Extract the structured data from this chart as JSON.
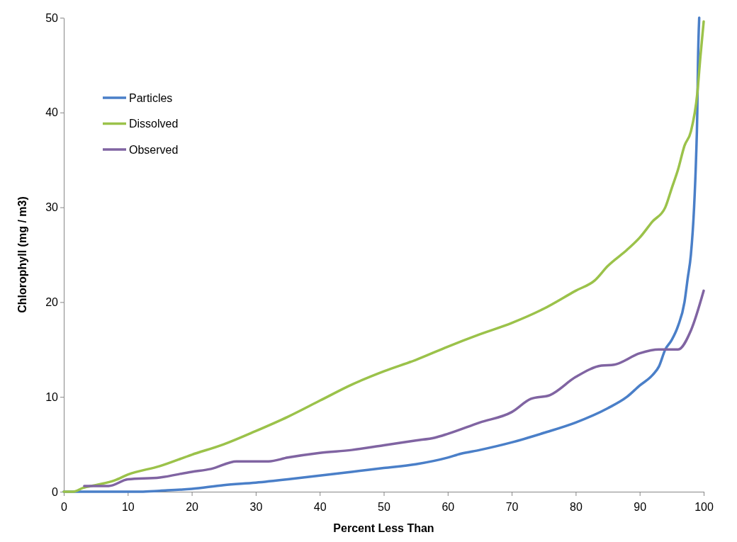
{
  "chart_data": {
    "type": "line",
    "xlabel": "Percent Less Than",
    "ylabel": "Chlorophyll (mg / m3)",
    "xlim": [
      0,
      100
    ],
    "ylim": [
      0,
      50
    ],
    "xticks": [
      0,
      10,
      20,
      30,
      40,
      50,
      60,
      70,
      80,
      90,
      100
    ],
    "yticks": [
      0,
      10,
      20,
      30,
      40,
      50
    ],
    "legend": "top left",
    "marker": "none",
    "line_style": "solid",
    "grid": false,
    "series": [
      {
        "name": "Particles",
        "color": "#4a7fc8",
        "x": [
          0,
          12,
          15,
          20,
          25,
          30,
          35,
          40,
          45,
          50,
          55,
          60,
          62,
          65,
          70,
          75,
          80,
          85,
          88,
          90,
          92,
          93,
          94,
          95,
          96,
          97,
          97.5,
          98,
          98.5,
          98.8,
          99,
          99.1,
          99.3
        ],
        "values": [
          0,
          0,
          0.1,
          0.3,
          0.7,
          0.95,
          1.3,
          1.7,
          2.1,
          2.5,
          2.9,
          3.6,
          4,
          4.4,
          5.2,
          6.2,
          7.3,
          8.8,
          10,
          11.2,
          12.3,
          13.2,
          15,
          16,
          17.5,
          20,
          22.5,
          25,
          30,
          35,
          40,
          45,
          50
        ]
      },
      {
        "name": "Dissolved",
        "color": "#9bc24a",
        "x": [
          0,
          1.5,
          3,
          5,
          8,
          10,
          15,
          20,
          25,
          30,
          35,
          40,
          45,
          50,
          55,
          60,
          65,
          70,
          75,
          80,
          83,
          85,
          88,
          90,
          92,
          94,
          95,
          96,
          97,
          98,
          99,
          99.5,
          100
        ],
        "values": [
          0,
          0,
          0.4,
          0.7,
          1.2,
          1.8,
          2.7,
          3.9,
          5,
          6.4,
          7.9,
          9.6,
          11.3,
          12.7,
          13.9,
          15.3,
          16.6,
          17.8,
          19.3,
          21.2,
          22.3,
          23.8,
          25.5,
          26.8,
          28.5,
          30,
          32,
          34,
          36.5,
          38,
          42,
          46,
          49.6
        ]
      },
      {
        "name": "Observed",
        "color": "#8064a2",
        "x": [
          3.2,
          7,
          10,
          15,
          20,
          23,
          27,
          32,
          35,
          40,
          45,
          50,
          55,
          58,
          60,
          65,
          70,
          73,
          76,
          80,
          84,
          86,
          90,
          93,
          96,
          98,
          100
        ],
        "values": [
          0.6,
          0.6,
          1.3,
          1.5,
          2.1,
          2.4,
          3.2,
          3.2,
          3.6,
          4.1,
          4.4,
          4.9,
          5.4,
          5.7,
          6.1,
          7.3,
          8.4,
          9.8,
          10.2,
          12.1,
          13.3,
          13.4,
          14.6,
          15,
          15,
          17,
          21.2
        ]
      }
    ]
  }
}
